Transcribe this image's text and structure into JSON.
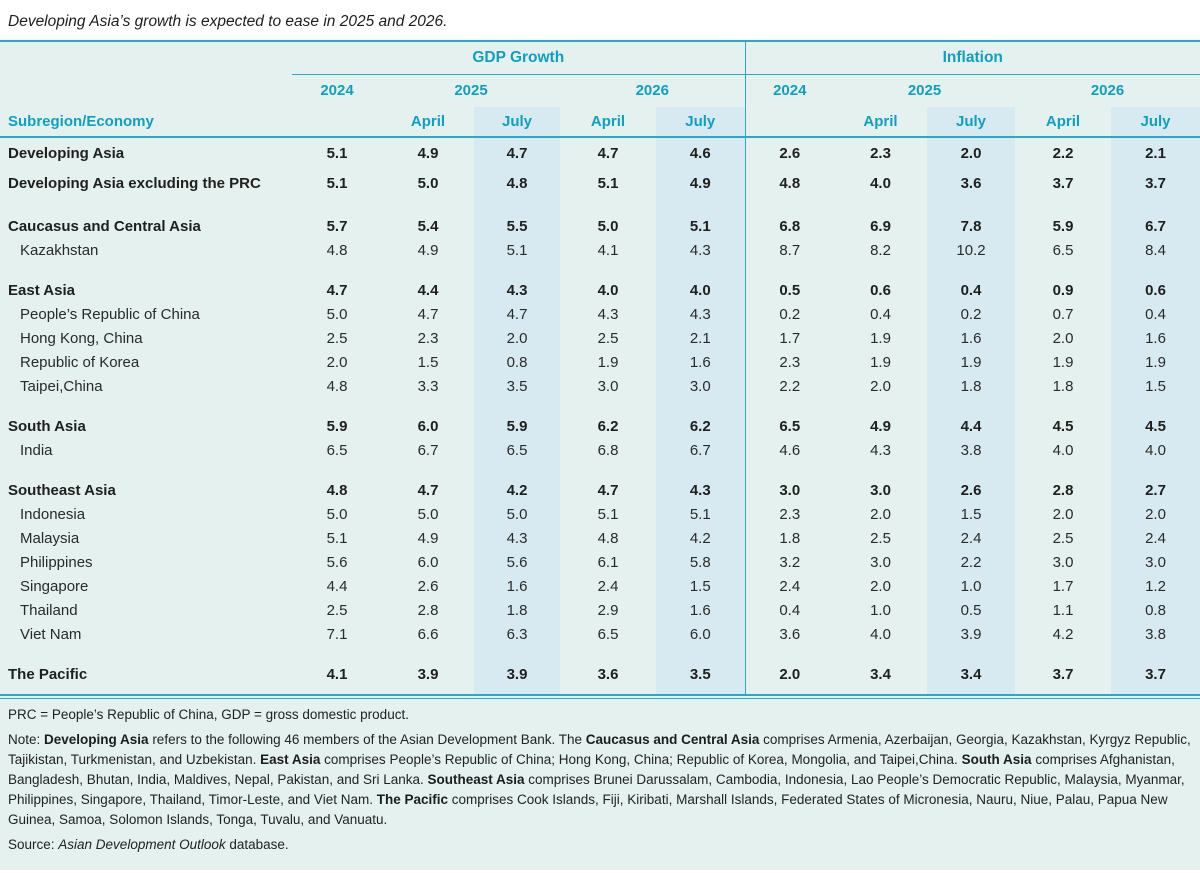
{
  "title": "Developing Asia’s growth is expected to ease in 2025 and 2026.",
  "colors": {
    "accent_teal_text": "#0f9fc0",
    "rule_teal": "#2aa9c2",
    "july_column_highlight": "#d8eaf1",
    "table_background": "#e4f1ef"
  },
  "table": {
    "row_header": "Subregion/Economy",
    "groups": [
      {
        "label": "GDP Growth"
      },
      {
        "label": "Inflation"
      }
    ],
    "years": [
      "2024",
      "2025",
      "2026"
    ],
    "months": [
      "April",
      "July"
    ],
    "rows": [
      {
        "label": "Developing Asia",
        "bold": true,
        "indent": false,
        "tall": true,
        "spacer_before": false,
        "gdp": [
          "5.1",
          "4.9",
          "4.7",
          "4.7",
          "4.6"
        ],
        "inflation": [
          "2.6",
          "2.3",
          "2.0",
          "2.2",
          "2.1"
        ]
      },
      {
        "label": "Developing Asia excluding the PRC",
        "bold": true,
        "indent": false,
        "tall": true,
        "spacer_before": false,
        "gdp": [
          "5.1",
          "5.0",
          "4.8",
          "5.1",
          "4.9"
        ],
        "inflation": [
          "4.8",
          "4.0",
          "3.6",
          "3.7",
          "3.7"
        ]
      },
      {
        "label": "Caucasus and Central Asia",
        "bold": true,
        "indent": false,
        "tall": false,
        "spacer_before": true,
        "gdp": [
          "5.7",
          "5.4",
          "5.5",
          "5.0",
          "5.1"
        ],
        "inflation": [
          "6.8",
          "6.9",
          "7.8",
          "5.9",
          "6.7"
        ]
      },
      {
        "label": "Kazakhstan",
        "bold": false,
        "indent": true,
        "tall": false,
        "spacer_before": false,
        "gdp": [
          "4.8",
          "4.9",
          "5.1",
          "4.1",
          "4.3"
        ],
        "inflation": [
          "8.7",
          "8.2",
          "10.2",
          "6.5",
          "8.4"
        ]
      },
      {
        "label": "East Asia",
        "bold": true,
        "indent": false,
        "tall": false,
        "spacer_before": true,
        "gdp": [
          "4.7",
          "4.4",
          "4.3",
          "4.0",
          "4.0"
        ],
        "inflation": [
          "0.5",
          "0.6",
          "0.4",
          "0.9",
          "0.6"
        ]
      },
      {
        "label": "People’s Republic of China",
        "bold": false,
        "indent": true,
        "tall": false,
        "spacer_before": false,
        "gdp": [
          "5.0",
          "4.7",
          "4.7",
          "4.3",
          "4.3"
        ],
        "inflation": [
          "0.2",
          "0.4",
          "0.2",
          "0.7",
          "0.4"
        ]
      },
      {
        "label": "Hong Kong, China",
        "bold": false,
        "indent": true,
        "tall": false,
        "spacer_before": false,
        "gdp": [
          "2.5",
          "2.3",
          "2.0",
          "2.5",
          "2.1"
        ],
        "inflation": [
          "1.7",
          "1.9",
          "1.6",
          "2.0",
          "1.6"
        ]
      },
      {
        "label": "Republic of Korea",
        "bold": false,
        "indent": true,
        "tall": false,
        "spacer_before": false,
        "gdp": [
          "2.0",
          "1.5",
          "0.8",
          "1.9",
          "1.6"
        ],
        "inflation": [
          "2.3",
          "1.9",
          "1.9",
          "1.9",
          "1.9"
        ]
      },
      {
        "label": "Taipei,China",
        "bold": false,
        "indent": true,
        "tall": false,
        "spacer_before": false,
        "gdp": [
          "4.8",
          "3.3",
          "3.5",
          "3.0",
          "3.0"
        ],
        "inflation": [
          "2.2",
          "2.0",
          "1.8",
          "1.8",
          "1.5"
        ]
      },
      {
        "label": "South Asia",
        "bold": true,
        "indent": false,
        "tall": false,
        "spacer_before": true,
        "gdp": [
          "5.9",
          "6.0",
          "5.9",
          "6.2",
          "6.2"
        ],
        "inflation": [
          "6.5",
          "4.9",
          "4.4",
          "4.5",
          "4.5"
        ]
      },
      {
        "label": "India",
        "bold": false,
        "indent": true,
        "tall": false,
        "spacer_before": false,
        "gdp": [
          "6.5",
          "6.7",
          "6.5",
          "6.8",
          "6.7"
        ],
        "inflation": [
          "4.6",
          "4.3",
          "3.8",
          "4.0",
          "4.0"
        ]
      },
      {
        "label": "Southeast Asia",
        "bold": true,
        "indent": false,
        "tall": false,
        "spacer_before": true,
        "gdp": [
          "4.8",
          "4.7",
          "4.2",
          "4.7",
          "4.3"
        ],
        "inflation": [
          "3.0",
          "3.0",
          "2.6",
          "2.8",
          "2.7"
        ]
      },
      {
        "label": "Indonesia",
        "bold": false,
        "indent": true,
        "tall": false,
        "spacer_before": false,
        "gdp": [
          "5.0",
          "5.0",
          "5.0",
          "5.1",
          "5.1"
        ],
        "inflation": [
          "2.3",
          "2.0",
          "1.5",
          "2.0",
          "2.0"
        ]
      },
      {
        "label": "Malaysia",
        "bold": false,
        "indent": true,
        "tall": false,
        "spacer_before": false,
        "gdp": [
          "5.1",
          "4.9",
          "4.3",
          "4.8",
          "4.2"
        ],
        "inflation": [
          "1.8",
          "2.5",
          "2.4",
          "2.5",
          "2.4"
        ]
      },
      {
        "label": "Philippines",
        "bold": false,
        "indent": true,
        "tall": false,
        "spacer_before": false,
        "gdp": [
          "5.6",
          "6.0",
          "5.6",
          "6.1",
          "5.8"
        ],
        "inflation": [
          "3.2",
          "3.0",
          "2.2",
          "3.0",
          "3.0"
        ]
      },
      {
        "label": "Singapore",
        "bold": false,
        "indent": true,
        "tall": false,
        "spacer_before": false,
        "gdp": [
          "4.4",
          "2.6",
          "1.6",
          "2.4",
          "1.5"
        ],
        "inflation": [
          "2.4",
          "2.0",
          "1.0",
          "1.7",
          "1.2"
        ]
      },
      {
        "label": "Thailand",
        "bold": false,
        "indent": true,
        "tall": false,
        "spacer_before": false,
        "gdp": [
          "2.5",
          "2.8",
          "1.8",
          "2.9",
          "1.6"
        ],
        "inflation": [
          "0.4",
          "1.0",
          "0.5",
          "1.1",
          "0.8"
        ]
      },
      {
        "label": "Viet Nam",
        "bold": false,
        "indent": true,
        "tall": false,
        "spacer_before": false,
        "gdp": [
          "7.1",
          "6.6",
          "6.3",
          "6.5",
          "6.0"
        ],
        "inflation": [
          "3.6",
          "4.0",
          "3.9",
          "4.2",
          "3.8"
        ]
      },
      {
        "label": "The Pacific",
        "bold": true,
        "indent": false,
        "tall": false,
        "spacer_before": true,
        "gdp": [
          "4.1",
          "3.9",
          "3.9",
          "3.6",
          "3.5"
        ],
        "inflation": [
          "2.0",
          "3.4",
          "3.4",
          "3.7",
          "3.7"
        ]
      }
    ]
  },
  "footnotes": {
    "abbrev": "PRC = People’s Republic of China, GDP = gross domestic product.",
    "note_segments": [
      {
        "text": "Note: "
      },
      {
        "text": "Developing Asia",
        "bold": true
      },
      {
        "text": " refers to the following 46 members of the Asian Development Bank. The "
      },
      {
        "text": "Caucasus and Central Asia",
        "bold": true
      },
      {
        "text": " comprises Armenia, Azerbaijan, Georgia, Kazakhstan, Kyrgyz Republic, Tajikistan, Turkmenistan, and Uzbekistan. "
      },
      {
        "text": "East Asia",
        "bold": true
      },
      {
        "text": " comprises People’s Republic of China; Hong Kong, China; Republic of Korea, Mongolia, and Taipei,China. "
      },
      {
        "text": "South Asia",
        "bold": true
      },
      {
        "text": " comprises Afghanistan, Bangladesh, Bhutan, India, Maldives, Nepal, Pakistan, and Sri Lanka. "
      },
      {
        "text": "Southeast Asia",
        "bold": true
      },
      {
        "text": " comprises Brunei Darussalam, Cambodia, Indonesia, Lao People’s Democratic Republic, Malaysia, Myanmar, Philippines, Singapore, Thailand, Timor-Leste, and Viet Nam. "
      },
      {
        "text": "The Pacific",
        "bold": true
      },
      {
        "text": " comprises Cook Islands, Fiji, Kiribati, Marshall Islands, Federated States of Micronesia, Nauru, Niue, Palau, Papua New Guinea, Samoa, Solomon Islands, Tonga, Tuvalu, and Vanuatu."
      }
    ],
    "source_segments": [
      {
        "text": "Source: "
      },
      {
        "text": "Asian Development Outlook",
        "italic": true
      },
      {
        "text": " database."
      }
    ]
  }
}
